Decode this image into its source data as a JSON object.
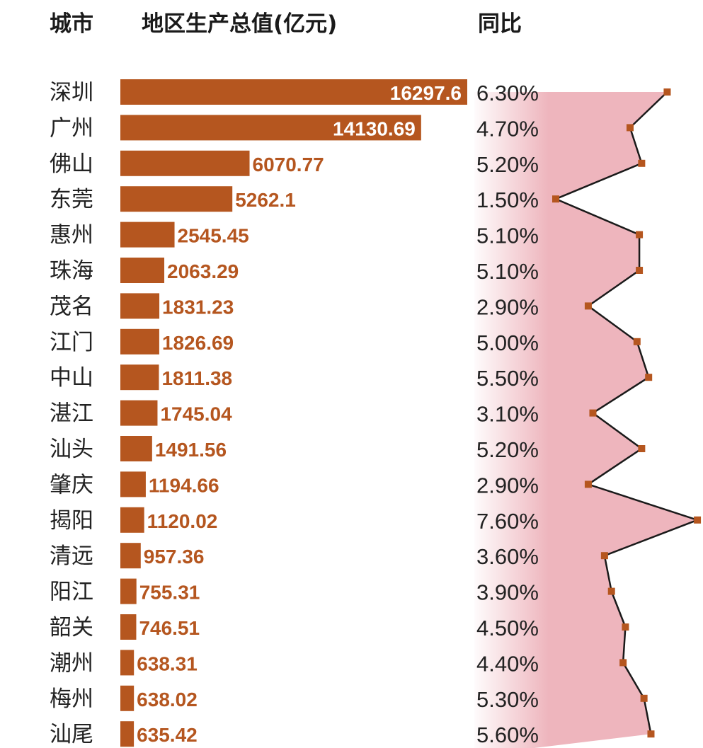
{
  "headers": {
    "city": "城市",
    "gdp": "地区生产总值(亿元)",
    "yoy": "同比"
  },
  "chart_data": {
    "type": "bar",
    "categories": [
      "深圳",
      "广州",
      "佛山",
      "东莞",
      "惠州",
      "珠海",
      "茂名",
      "江门",
      "中山",
      "湛江",
      "汕头",
      "肇庆",
      "揭阳",
      "清远",
      "阳江",
      "韶关",
      "潮州",
      "梅州",
      "汕尾"
    ],
    "series": [
      {
        "values": [
          16297.6,
          14130.69,
          6070.77,
          5262.1,
          2545.45,
          2063.29,
          1831.23,
          1826.69,
          1811.38,
          1745.04,
          1491.56,
          1194.66,
          1120.02,
          957.36,
          755.31,
          746.51,
          638.31,
          638.02,
          635.42
        ],
        "labels": [
          "16297.6",
          "14130.69",
          "6070.77",
          "5262.1",
          "2545.45",
          "2063.29",
          "1831.23",
          "1826.69",
          "1811.38",
          "1745.04",
          "1491.56",
          "1194.66",
          "1120.02",
          "957.36",
          "755.31",
          "746.51",
          "638.31",
          "638.02",
          "635.42"
        ]
      },
      {
        "type": "line-area",
        "values": [
          6.3,
          4.7,
          5.2,
          1.5,
          5.1,
          5.1,
          2.9,
          5.0,
          5.5,
          3.1,
          5.2,
          2.9,
          7.6,
          3.6,
          3.9,
          4.5,
          4.4,
          5.3,
          5.6
        ],
        "labels": [
          "6.30%",
          "4.70%",
          "5.20%",
          "1.50%",
          "5.10%",
          "5.10%",
          "2.90%",
          "5.00%",
          "5.50%",
          "3.10%",
          "5.20%",
          "2.90%",
          "7.60%",
          "3.60%",
          "3.90%",
          "4.50%",
          "4.40%",
          "5.30%",
          "5.60%"
        ]
      }
    ],
    "colors": {
      "bar": "#b5561f",
      "bar_label_inside": "#ffffff",
      "bar_label_outside": "#b5561f",
      "area": "#eeb5bd",
      "line": "#1a1a1a",
      "marker": "#b5561f"
    }
  }
}
